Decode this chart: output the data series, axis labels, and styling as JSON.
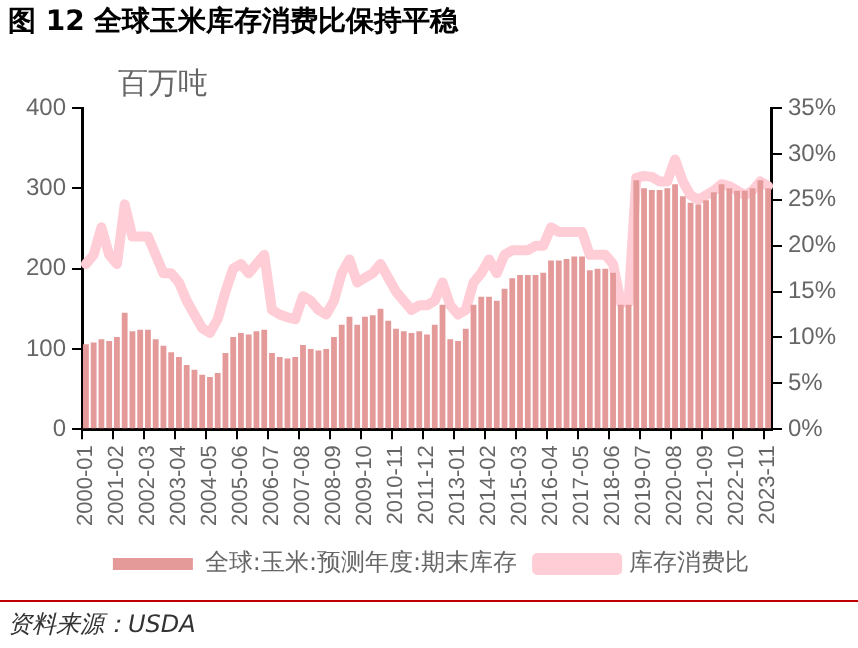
{
  "chart_data": {
    "type": "bar",
    "title": "图 12 全球玉米库存消费比保持平稳",
    "ylabel": "百万吨",
    "categories": [
      "2000-01",
      null,
      null,
      null,
      "2001-02",
      null,
      null,
      null,
      "2002-03",
      null,
      null,
      null,
      "2003-04",
      null,
      null,
      null,
      "2004-05",
      null,
      null,
      null,
      "2005-06",
      null,
      null,
      null,
      "2006-07",
      null,
      null,
      null,
      "2007-08",
      null,
      null,
      null,
      "2008-09",
      null,
      null,
      null,
      "2009-10",
      null,
      null,
      null,
      "2010-11",
      null,
      null,
      null,
      "2011-12",
      null,
      null,
      null,
      "2013-01",
      null,
      null,
      null,
      "2014-02",
      null,
      null,
      null,
      "2015-03",
      null,
      null,
      null,
      "2016-04",
      null,
      null,
      null,
      "2017-05",
      null,
      null,
      null,
      "2018-06",
      null,
      null,
      null,
      "2019-07",
      null,
      null,
      null,
      "2020-08",
      null,
      null,
      null,
      "2021-09",
      null,
      null,
      null,
      "2022-10",
      null,
      null,
      null,
      "2023-11"
    ],
    "series": [
      {
        "name": "全球:玉米:预测年度:期末库存",
        "color": "#e59a9a",
        "values": [
          106,
          108,
          112,
          110,
          115,
          145,
          122,
          124,
          124,
          112,
          104,
          96,
          90,
          80,
          74,
          68,
          65,
          70,
          95,
          115,
          120,
          118,
          122,
          124,
          95,
          90,
          88,
          90,
          105,
          100,
          98,
          100,
          115,
          130,
          140,
          130,
          140,
          142,
          150,
          135,
          125,
          122,
          120,
          122,
          118,
          130,
          155,
          112,
          110,
          125,
          155,
          165,
          165,
          160,
          175,
          188,
          192,
          192,
          192,
          195,
          210,
          210,
          212,
          215,
          215,
          198,
          200,
          200,
          195,
          155,
          155,
          310,
          300,
          298,
          298,
          300,
          305,
          290,
          282,
          280,
          285,
          295,
          305,
          300,
          297,
          297,
          300,
          310,
          300
        ]
      },
      {
        "name": "库存消费比",
        "type": "line",
        "axis": "y2",
        "color": "#ffcdd6",
        "values": [
          18,
          19,
          22,
          19,
          18,
          24.5,
          21,
          21,
          21,
          19,
          17,
          17,
          16,
          14,
          12.5,
          11,
          10.5,
          12,
          15,
          17.5,
          18,
          17,
          18,
          19,
          13,
          12.5,
          12.2,
          12,
          14.5,
          14,
          13,
          12.5,
          14,
          17,
          18.5,
          16,
          16.5,
          17,
          18,
          16.5,
          15,
          14,
          13,
          13.5,
          13.5,
          14,
          16,
          13.5,
          12.5,
          13,
          16,
          17,
          18.5,
          17,
          19,
          19.5,
          19.5,
          19.5,
          20,
          20,
          22,
          21.5,
          21.5,
          21.5,
          21.5,
          19,
          19,
          19,
          18,
          13.8,
          13.8,
          27.4,
          27.6,
          27.5,
          27,
          27,
          29.4,
          27,
          25.5,
          25,
          25.5,
          26,
          26.7,
          26.5,
          26,
          25.5,
          26,
          27,
          26.5
        ]
      }
    ],
    "ylim": [
      0,
      400
    ],
    "yticks": [
      0,
      100,
      200,
      300,
      400
    ],
    "y2lim": [
      0,
      35
    ],
    "y2ticks": [
      {
        "value": 0,
        "label": "0%"
      },
      {
        "value": 5,
        "label": "5%"
      },
      {
        "value": 10,
        "label": "10%"
      },
      {
        "value": 15,
        "label": "15%"
      },
      {
        "value": 20,
        "label": "20%"
      },
      {
        "value": 25,
        "label": "25%"
      },
      {
        "value": 30,
        "label": "30%"
      },
      {
        "value": 35,
        "label": "35%"
      }
    ],
    "grid": false,
    "legend": "bottom",
    "marker": "none",
    "line_style": "solid",
    "annotations": [
      "资料来源：USDA"
    ]
  }
}
